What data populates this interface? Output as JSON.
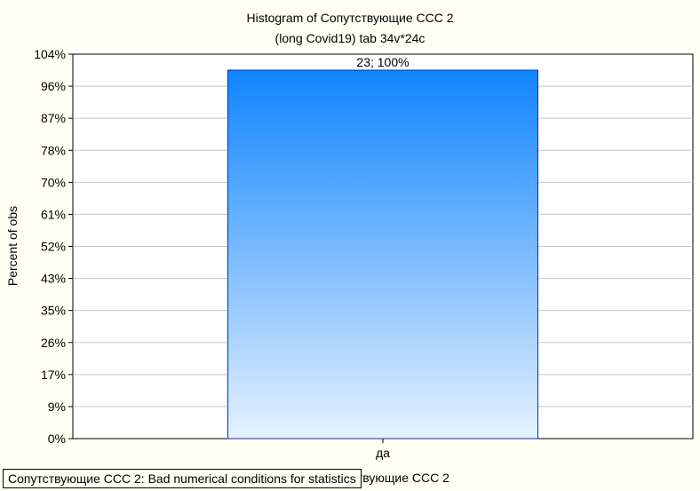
{
  "chart_data": {
    "type": "bar",
    "title": "Histogram of Сопутствующие ССС 2",
    "subtitle": "(long Covid19) tab 34v*24c",
    "xlabel": "Сопутствующие ССС 2",
    "ylabel": "Percent of obs",
    "categories": [
      "да"
    ],
    "values": [
      100
    ],
    "counts": [
      23
    ],
    "data_labels": [
      "23; 100%"
    ],
    "yticks": [
      "0%",
      "9%",
      "17%",
      "26%",
      "35%",
      "43%",
      "52%",
      "61%",
      "70%",
      "78%",
      "87%",
      "96%",
      "104%"
    ],
    "ylim": [
      0,
      104.35
    ],
    "grid": true,
    "bar_color_top": "#1084ff",
    "bar_color_bottom": "#e6f2ff",
    "bar_border": "#0033aa"
  },
  "message": "Сопутствующие ССС 2:  Bad numerical conditions for statistics"
}
